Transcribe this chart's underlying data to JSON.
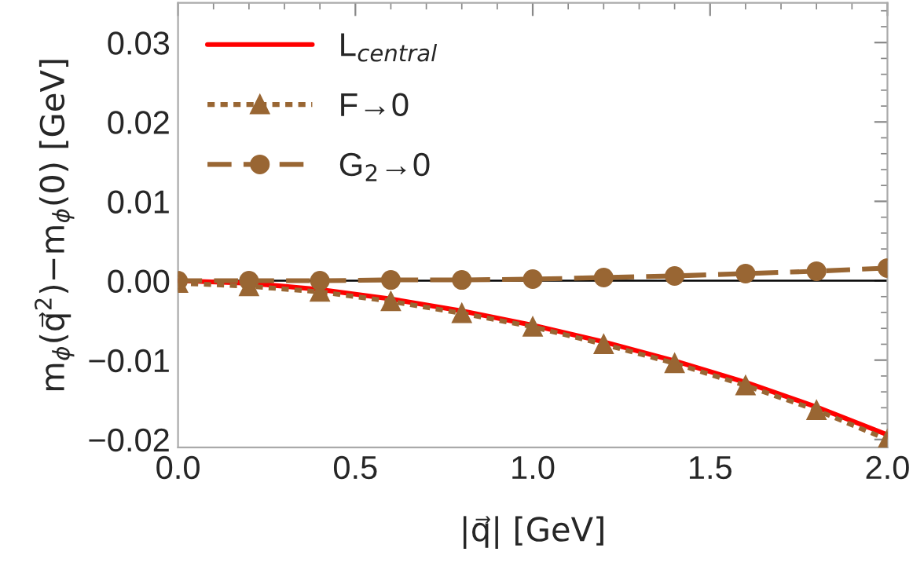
{
  "chart_data": {
    "type": "line",
    "xlabel": "|q⃗| [GeV]",
    "ylabel": "m$_{ϕ}$(q⃗$^{2}$)−m$_{ϕ}$(0) [GeV]",
    "x": [
      0,
      0.2,
      0.4,
      0.6,
      0.8,
      1.0,
      1.2,
      1.4,
      1.6,
      1.8,
      2.0
    ],
    "series": [
      {
        "name": "L$_{central}$",
        "color": "#ff0000",
        "line_style": "solid",
        "marker": "none",
        "values": [
          0,
          -0.0003,
          -0.0011,
          -0.0023,
          -0.0038,
          -0.0056,
          -0.0077,
          -0.0101,
          -0.0128,
          -0.0159,
          -0.0194
        ]
      },
      {
        "name": "F→0",
        "color": "#996633",
        "line_style": "dotted",
        "marker": "triangle",
        "values": [
          -0.0003,
          -0.0007,
          -0.0014,
          -0.0026,
          -0.0041,
          -0.0058,
          -0.008,
          -0.0104,
          -0.0132,
          -0.0163,
          -0.02
        ]
      },
      {
        "name": "G$_{2}$→0",
        "color": "#996633",
        "line_style": "dashed",
        "marker": "circle",
        "values": [
          0,
          0,
          0,
          0.0001,
          0.0001,
          0.0002,
          0.0004,
          0.0006,
          0.0009,
          0.0012,
          0.0016
        ]
      }
    ],
    "xlim": [
      0,
      2.0
    ],
    "ylim": [
      -0.021,
      0.035
    ],
    "xticks": [
      {
        "value": 0,
        "label": "0.0"
      },
      0.5,
      {
        "value": 1,
        "label": "1.0"
      },
      1.5,
      {
        "value": 2,
        "label": "2.0"
      }
    ],
    "yticks": [
      {
        "value": -0.02,
        "label": "−0.02"
      },
      {
        "value": -0.01,
        "label": "−0.01"
      },
      {
        "value": 0,
        "label": "0.00"
      },
      0.01,
      0.02,
      0.03
    ],
    "ref_lines": [
      {
        "axis": "y",
        "value": 0,
        "color": "#000000"
      }
    ],
    "grid": false,
    "legend": "top left"
  }
}
